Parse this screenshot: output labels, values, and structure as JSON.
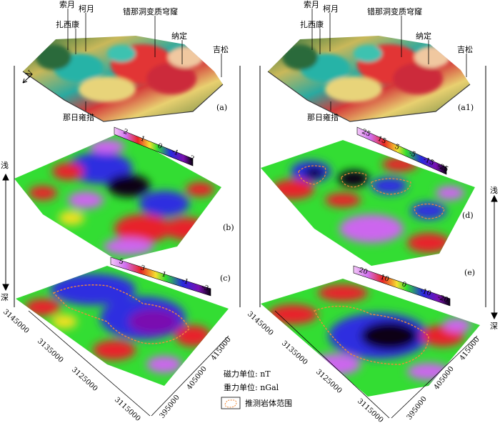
{
  "figure": {
    "left_terrain_labels": [
      "索月",
      "柯月",
      "扎西康",
      "错那洞变质穹窿",
      "纳定",
      "吉松",
      "那日雍措"
    ],
    "right_terrain_labels": [
      "索月",
      "柯月",
      "扎西康",
      "错那洞变质穹窿",
      "纳定",
      "吉松",
      "那日雍措"
    ],
    "panels": {
      "a": "(a)",
      "a1": "(a1)",
      "b": "(b)",
      "c": "(c)",
      "d": "(d)",
      "e": "(e)"
    },
    "north_label": "N",
    "depth": {
      "shallow": "浅",
      "deep": "深"
    },
    "colorbars": {
      "b": [
        "2",
        "1",
        "0",
        "-1",
        "-2"
      ],
      "c": [
        "5",
        "3",
        "1",
        "-1",
        "-3"
      ],
      "d": [
        "25",
        "15",
        "5",
        "-5",
        "-15",
        "-25"
      ],
      "e": [
        "20",
        "10",
        "0",
        "-10",
        "-20"
      ]
    },
    "northing_ticks": [
      "3145000",
      "3135000",
      "3125000",
      "3115000"
    ],
    "easting_ticks": [
      "395000",
      "405000",
      "415000"
    ],
    "legend": {
      "magnetic_unit": "磁力单位: nT",
      "gravity_unit": "重力单位: nGal",
      "rock_range": "推测岩体范围"
    },
    "colors": {
      "red": "#e8202a",
      "green": "#33dd33",
      "blue": "#2d2de0",
      "violet": "#cc66ee",
      "black": "#100018",
      "yellow": "#f2e020",
      "dashed_outline": "#f08a3a"
    }
  }
}
